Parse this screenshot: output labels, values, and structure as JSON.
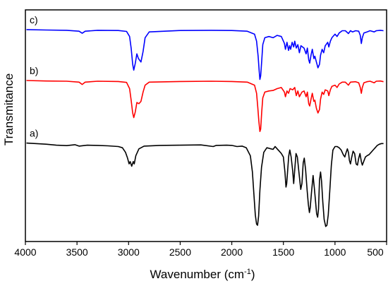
{
  "chart_data": {
    "type": "line",
    "xlabel": "Wavenumber (cm",
    "xlabel_superscript": "-1",
    "xlabel_suffix": ")",
    "ylabel": "Transmitance",
    "xlim": [
      4000,
      500
    ],
    "x_ticks": [
      4000,
      3500,
      3000,
      2500,
      2000,
      1500,
      1000,
      500
    ],
    "y_ticks_shown": false,
    "ylim": [
      0,
      100
    ],
    "grid": false,
    "legend": "none",
    "series": [
      {
        "name": "c)",
        "color": "#0000ff",
        "points": [
          [
            3990,
            91.5
          ],
          [
            3800,
            91.3
          ],
          [
            3600,
            91.2
          ],
          [
            3480,
            90.8
          ],
          [
            3450,
            89.9
          ],
          [
            3420,
            90.8
          ],
          [
            3300,
            91.2
          ],
          [
            3100,
            91.1
          ],
          [
            3020,
            90.7
          ],
          [
            2990,
            88.5
          ],
          [
            2975,
            83.5
          ],
          [
            2960,
            76.5
          ],
          [
            2950,
            74.0
          ],
          [
            2935,
            77.0
          ],
          [
            2920,
            81.0
          ],
          [
            2905,
            79.0
          ],
          [
            2880,
            77.5
          ],
          [
            2860,
            82.0
          ],
          [
            2840,
            88.0
          ],
          [
            2800,
            90.5
          ],
          [
            2500,
            91.1
          ],
          [
            2200,
            91.2
          ],
          [
            2000,
            91.1
          ],
          [
            1850,
            90.8
          ],
          [
            1780,
            89.5
          ],
          [
            1760,
            86.5
          ],
          [
            1745,
            80.0
          ],
          [
            1735,
            74.0
          ],
          [
            1728,
            70.0
          ],
          [
            1720,
            71.5
          ],
          [
            1710,
            78.0
          ],
          [
            1700,
            85.0
          ],
          [
            1680,
            88.0
          ],
          [
            1640,
            88.5
          ],
          [
            1600,
            88.0
          ],
          [
            1560,
            89.0
          ],
          [
            1520,
            88.5
          ],
          [
            1490,
            85.5
          ],
          [
            1480,
            83.0
          ],
          [
            1465,
            86.0
          ],
          [
            1450,
            82.5
          ],
          [
            1440,
            84.5
          ],
          [
            1430,
            83.0
          ],
          [
            1415,
            86.0
          ],
          [
            1400,
            84.0
          ],
          [
            1390,
            86.5
          ],
          [
            1375,
            83.5
          ],
          [
            1360,
            85.0
          ],
          [
            1345,
            81.5
          ],
          [
            1330,
            84.5
          ],
          [
            1300,
            83.5
          ],
          [
            1280,
            81.0
          ],
          [
            1268,
            83.5
          ],
          [
            1255,
            78.5
          ],
          [
            1245,
            77.0
          ],
          [
            1232,
            80.5
          ],
          [
            1220,
            83.0
          ],
          [
            1205,
            79.0
          ],
          [
            1195,
            80.0
          ],
          [
            1180,
            77.5
          ],
          [
            1165,
            75.0
          ],
          [
            1150,
            76.5
          ],
          [
            1140,
            80.5
          ],
          [
            1125,
            83.0
          ],
          [
            1110,
            81.5
          ],
          [
            1095,
            84.5
          ],
          [
            1070,
            86.0
          ],
          [
            1060,
            84.0
          ],
          [
            1045,
            86.5
          ],
          [
            1030,
            88.0
          ],
          [
            1000,
            89.5
          ],
          [
            980,
            88.5
          ],
          [
            960,
            90.0
          ],
          [
            930,
            91.0
          ],
          [
            900,
            91.0
          ],
          [
            870,
            89.8
          ],
          [
            850,
            91.0
          ],
          [
            830,
            90.5
          ],
          [
            800,
            91.0
          ],
          [
            770,
            90.8
          ],
          [
            755,
            89.0
          ],
          [
            745,
            85.5
          ],
          [
            735,
            88.0
          ],
          [
            720,
            90.0
          ],
          [
            690,
            90.5
          ],
          [
            660,
            91.0
          ],
          [
            620,
            90.5
          ],
          [
            600,
            91.0
          ],
          [
            560,
            91.2
          ],
          [
            530,
            91.0
          ]
        ]
      },
      {
        "name": "b)",
        "color": "#ff0000",
        "points": [
          [
            3990,
            69.5
          ],
          [
            3800,
            69.3
          ],
          [
            3600,
            69.2
          ],
          [
            3480,
            68.8
          ],
          [
            3450,
            67.8
          ],
          [
            3420,
            68.8
          ],
          [
            3300,
            69.2
          ],
          [
            3100,
            69.1
          ],
          [
            3020,
            68.7
          ],
          [
            2990,
            66.0
          ],
          [
            2975,
            61.0
          ],
          [
            2960,
            55.5
          ],
          [
            2950,
            53.5
          ],
          [
            2935,
            56.0
          ],
          [
            2920,
            60.0
          ],
          [
            2900,
            59.5
          ],
          [
            2880,
            60.5
          ],
          [
            2860,
            64.5
          ],
          [
            2840,
            67.5
          ],
          [
            2800,
            68.8
          ],
          [
            2500,
            69.1
          ],
          [
            2200,
            69.2
          ],
          [
            2000,
            69.1
          ],
          [
            1850,
            68.8
          ],
          [
            1780,
            67.5
          ],
          [
            1760,
            64.0
          ],
          [
            1748,
            58.0
          ],
          [
            1738,
            52.0
          ],
          [
            1728,
            47.5
          ],
          [
            1720,
            48.5
          ],
          [
            1710,
            56.0
          ],
          [
            1700,
            62.0
          ],
          [
            1680,
            64.5
          ],
          [
            1640,
            65.0
          ],
          [
            1600,
            65.2
          ],
          [
            1560,
            66.0
          ],
          [
            1520,
            66.5
          ],
          [
            1490,
            64.5
          ],
          [
            1480,
            62.5
          ],
          [
            1465,
            65.0
          ],
          [
            1450,
            64.0
          ],
          [
            1435,
            66.0
          ],
          [
            1410,
            65.5
          ],
          [
            1390,
            66.5
          ],
          [
            1375,
            63.0
          ],
          [
            1360,
            65.0
          ],
          [
            1345,
            62.5
          ],
          [
            1320,
            64.5
          ],
          [
            1300,
            65.0
          ],
          [
            1280,
            62.5
          ],
          [
            1268,
            64.5
          ],
          [
            1255,
            59.5
          ],
          [
            1245,
            58.5
          ],
          [
            1232,
            61.5
          ],
          [
            1220,
            64.0
          ],
          [
            1205,
            60.5
          ],
          [
            1195,
            61.0
          ],
          [
            1180,
            57.5
          ],
          [
            1165,
            55.5
          ],
          [
            1150,
            57.0
          ],
          [
            1140,
            61.5
          ],
          [
            1125,
            64.5
          ],
          [
            1110,
            63.5
          ],
          [
            1095,
            65.5
          ],
          [
            1070,
            65.0
          ],
          [
            1060,
            63.0
          ],
          [
            1045,
            65.5
          ],
          [
            1030,
            67.0
          ],
          [
            1000,
            67.5
          ],
          [
            980,
            66.5
          ],
          [
            960,
            68.0
          ],
          [
            930,
            68.8
          ],
          [
            900,
            68.8
          ],
          [
            870,
            67.5
          ],
          [
            850,
            68.8
          ],
          [
            800,
            69.0
          ],
          [
            770,
            68.5
          ],
          [
            755,
            66.5
          ],
          [
            745,
            64.0
          ],
          [
            735,
            66.5
          ],
          [
            720,
            68.5
          ],
          [
            690,
            69.0
          ],
          [
            660,
            69.2
          ],
          [
            620,
            68.5
          ],
          [
            600,
            69.2
          ],
          [
            560,
            69.3
          ],
          [
            530,
            69.0
          ]
        ]
      },
      {
        "name": "a)",
        "color": "#000000",
        "points": [
          [
            3990,
            42.5
          ],
          [
            3800,
            42.0
          ],
          [
            3700,
            41.6
          ],
          [
            3600,
            41.4
          ],
          [
            3520,
            41.8
          ],
          [
            3480,
            41.2
          ],
          [
            3400,
            41.6
          ],
          [
            3300,
            41.5
          ],
          [
            3200,
            41.3
          ],
          [
            3100,
            41.0
          ],
          [
            3060,
            40.5
          ],
          [
            3030,
            38.5
          ],
          [
            3010,
            36.0
          ],
          [
            2995,
            33.5
          ],
          [
            2985,
            34.5
          ],
          [
            2970,
            32.5
          ],
          [
            2955,
            34.5
          ],
          [
            2945,
            33.5
          ],
          [
            2930,
            37.0
          ],
          [
            2900,
            40.0
          ],
          [
            2850,
            41.2
          ],
          [
            2700,
            41.5
          ],
          [
            2500,
            41.6
          ],
          [
            2300,
            41.7
          ],
          [
            2180,
            41.0
          ],
          [
            2150,
            41.5
          ],
          [
            2050,
            41.6
          ],
          [
            2000,
            41.5
          ],
          [
            1950,
            41.0
          ],
          [
            1900,
            41.2
          ],
          [
            1860,
            40.5
          ],
          [
            1820,
            37.0
          ],
          [
            1800,
            30.0
          ],
          [
            1785,
            20.0
          ],
          [
            1772,
            11.5
          ],
          [
            1760,
            7.5
          ],
          [
            1750,
            7.0
          ],
          [
            1740,
            11.0
          ],
          [
            1728,
            22.0
          ],
          [
            1712,
            32.0
          ],
          [
            1690,
            38.5
          ],
          [
            1660,
            40.5
          ],
          [
            1620,
            40.0
          ],
          [
            1600,
            39.8
          ],
          [
            1580,
            41.0
          ],
          [
            1560,
            40.0
          ],
          [
            1540,
            39.0
          ],
          [
            1520,
            38.0
          ],
          [
            1500,
            36.5
          ],
          [
            1485,
            30.0
          ],
          [
            1475,
            23.5
          ],
          [
            1468,
            25.0
          ],
          [
            1460,
            30.0
          ],
          [
            1448,
            37.0
          ],
          [
            1438,
            39.5
          ],
          [
            1425,
            36.5
          ],
          [
            1410,
            30.5
          ],
          [
            1400,
            25.0
          ],
          [
            1390,
            31.0
          ],
          [
            1378,
            38.0
          ],
          [
            1365,
            36.5
          ],
          [
            1350,
            30.0
          ],
          [
            1332,
            22.5
          ],
          [
            1320,
            25.0
          ],
          [
            1308,
            34.0
          ],
          [
            1298,
            36.0
          ],
          [
            1285,
            31.0
          ],
          [
            1270,
            22.0
          ],
          [
            1258,
            16.0
          ],
          [
            1248,
            12.5
          ],
          [
            1240,
            14.5
          ],
          [
            1228,
            21.0
          ],
          [
            1212,
            28.5
          ],
          [
            1200,
            23.0
          ],
          [
            1190,
            18.0
          ],
          [
            1178,
            12.0
          ],
          [
            1168,
            10.5
          ],
          [
            1160,
            14.0
          ],
          [
            1150,
            26.5
          ],
          [
            1140,
            30.0
          ],
          [
            1130,
            26.0
          ],
          [
            1118,
            17.0
          ],
          [
            1105,
            9.5
          ],
          [
            1090,
            6.5
          ],
          [
            1078,
            7.0
          ],
          [
            1065,
            11.5
          ],
          [
            1050,
            22.0
          ],
          [
            1035,
            33.0
          ],
          [
            1020,
            39.5
          ],
          [
            1000,
            41.0
          ],
          [
            980,
            41.0
          ],
          [
            960,
            40.5
          ],
          [
            940,
            39.5
          ],
          [
            920,
            37.5
          ],
          [
            905,
            36.5
          ],
          [
            895,
            38.0
          ],
          [
            880,
            40.0
          ],
          [
            870,
            38.5
          ],
          [
            860,
            35.0
          ],
          [
            850,
            33.5
          ],
          [
            840,
            36.0
          ],
          [
            825,
            39.0
          ],
          [
            810,
            38.0
          ],
          [
            795,
            33.5
          ],
          [
            782,
            33.0
          ],
          [
            770,
            36.0
          ],
          [
            758,
            38.0
          ],
          [
            745,
            34.5
          ],
          [
            735,
            33.0
          ],
          [
            722,
            34.5
          ],
          [
            705,
            36.5
          ],
          [
            690,
            37.0
          ],
          [
            670,
            37.5
          ],
          [
            650,
            38.5
          ],
          [
            630,
            39.5
          ],
          [
            610,
            40.5
          ],
          [
            590,
            41.5
          ],
          [
            570,
            42.0
          ],
          [
            550,
            42.3
          ],
          [
            530,
            42.3
          ]
        ]
      }
    ]
  }
}
